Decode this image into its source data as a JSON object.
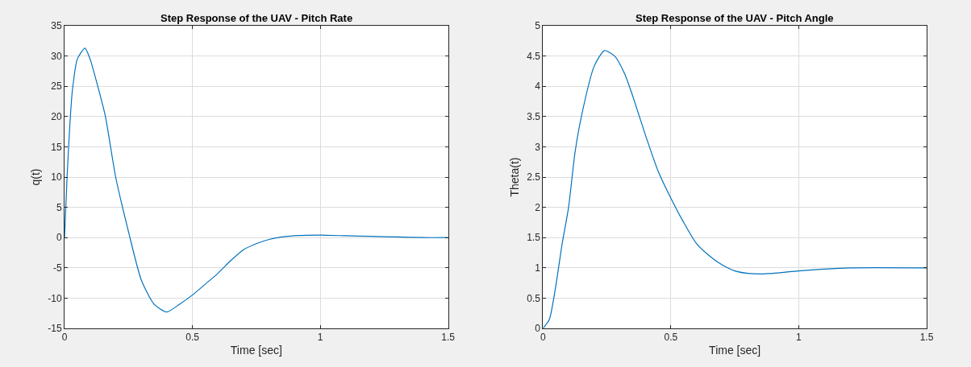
{
  "chart_data": [
    {
      "type": "line",
      "title": "Step Response of the UAV - Pitch Rate",
      "xlabel": "Time [sec]",
      "ylabel": "q(t)",
      "xlim": [
        0,
        1.5
      ],
      "xticks": [
        0,
        0.5,
        1,
        1.5
      ],
      "ylim": [
        -15,
        35
      ],
      "yticks": [
        -15,
        -10,
        -5,
        0,
        5,
        10,
        15,
        20,
        25,
        30,
        35
      ],
      "grid": true,
      "line_style": "solid",
      "x": [
        0,
        0.01,
        0.02,
        0.03,
        0.05,
        0.08,
        0.1,
        0.13,
        0.16,
        0.2,
        0.25,
        0.3,
        0.35,
        0.4,
        0.45,
        0.5,
        0.55,
        0.6,
        0.65,
        0.7,
        0.75,
        0.8,
        0.85,
        0.9,
        1.0,
        1.1,
        1.2,
        1.3,
        1.4,
        1.5
      ],
      "series": [
        {
          "color": "#0072bd",
          "values": [
            0,
            10,
            18,
            24,
            29.5,
            31.3,
            29.5,
            25,
            20,
            10,
            1,
            -7,
            -11,
            -12.3,
            -11,
            -9.5,
            -7.7,
            -5.9,
            -3.8,
            -2,
            -1,
            -0.3,
            0.1,
            0.3,
            0.4,
            0.3,
            0.2,
            0.1,
            0,
            0
          ]
        }
      ]
    },
    {
      "type": "line",
      "title": "Step Response of the UAV - Pitch Angle",
      "xlabel": "Time [sec]",
      "ylabel": "Theta(t)",
      "xlim": [
        0,
        1.5
      ],
      "xticks": [
        0,
        0.5,
        1,
        1.5
      ],
      "ylim": [
        0,
        5
      ],
      "yticks": [
        0,
        0.5,
        1,
        1.5,
        2,
        2.5,
        3,
        3.5,
        4,
        4.5,
        5
      ],
      "grid": true,
      "line_style": "solid",
      "x": [
        0,
        0.025,
        0.05,
        0.075,
        0.1,
        0.125,
        0.15,
        0.2,
        0.24,
        0.28,
        0.32,
        0.35,
        0.4,
        0.45,
        0.5,
        0.55,
        0.6,
        0.65,
        0.7,
        0.75,
        0.8,
        0.85,
        0.9,
        1.0,
        1.1,
        1.2,
        1.5
      ],
      "series": [
        {
          "color": "#0072bd",
          "values": [
            0,
            0.15,
            0.7,
            1.4,
            2.0,
            2.9,
            3.5,
            4.33,
            4.59,
            4.5,
            4.2,
            3.85,
            3.2,
            2.6,
            2.15,
            1.75,
            1.4,
            1.2,
            1.05,
            0.95,
            0.91,
            0.9,
            0.91,
            0.95,
            0.98,
            1.0,
            1.0
          ]
        }
      ]
    }
  ]
}
